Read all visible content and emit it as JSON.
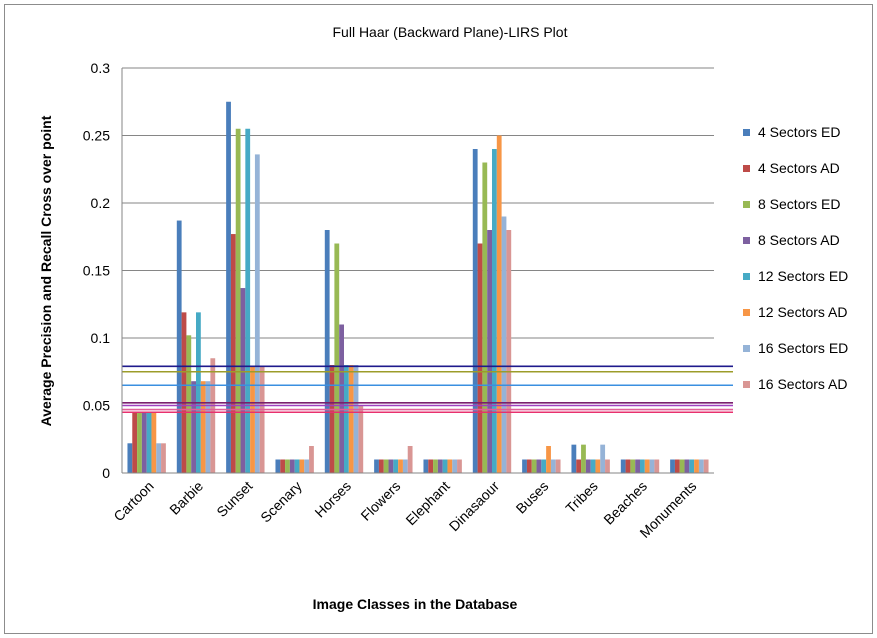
{
  "chart_data": {
    "type": "bar",
    "title": "Full Haar (Backward  Plane)-LIRS Plot",
    "xlabel": "Image Classes  in the Database",
    "ylabel": "Average Precision and Recall Cross over point",
    "ylim": [
      0,
      0.3
    ],
    "yticks": [
      "0",
      "0.05",
      "0.1",
      "0.15",
      "0.2",
      "0.25",
      "0.3"
    ],
    "grid": "horizontal",
    "legend_position": "right",
    "categories": [
      "Cartoon",
      "Barbie",
      "Sunset",
      "Scenary",
      "Horses",
      "Flowers",
      "Elephant",
      "Dinasaour",
      "Buses",
      "Tribes",
      "Beaches",
      "Monuments"
    ],
    "series": [
      {
        "name": "4 Sectors ED",
        "color": "#4a7ebb",
        "values": [
          0.022,
          0.187,
          0.275,
          0.01,
          0.18,
          0.01,
          0.01,
          0.24,
          0.01,
          0.021,
          0.01,
          0.01
        ]
      },
      {
        "name": "4 Sectors AD",
        "color": "#be4b48",
        "values": [
          0.045,
          0.119,
          0.177,
          0.01,
          0.08,
          0.01,
          0.01,
          0.17,
          0.01,
          0.01,
          0.01,
          0.01
        ]
      },
      {
        "name": "8 Sectors ED",
        "color": "#98b954",
        "values": [
          0.045,
          0.102,
          0.255,
          0.01,
          0.17,
          0.01,
          0.01,
          0.23,
          0.01,
          0.021,
          0.01,
          0.01
        ]
      },
      {
        "name": "8 Sectors AD",
        "color": "#7d60a0",
        "values": [
          0.045,
          0.068,
          0.137,
          0.01,
          0.11,
          0.01,
          0.01,
          0.18,
          0.01,
          0.01,
          0.01,
          0.01
        ]
      },
      {
        "name": "12 Sectors ED",
        "color": "#46aac5",
        "values": [
          0.045,
          0.119,
          0.255,
          0.01,
          0.08,
          0.01,
          0.01,
          0.24,
          0.01,
          0.01,
          0.01,
          0.01
        ]
      },
      {
        "name": "12 Sectors AD",
        "color": "#f79646",
        "values": [
          0.045,
          0.068,
          0.079,
          0.01,
          0.08,
          0.01,
          0.01,
          0.25,
          0.02,
          0.01,
          0.01,
          0.01
        ]
      },
      {
        "name": "16 Sectors ED",
        "color": "#95b3d7",
        "values": [
          0.022,
          0.068,
          0.236,
          0.01,
          0.08,
          0.01,
          0.01,
          0.19,
          0.01,
          0.021,
          0.01,
          0.01
        ]
      },
      {
        "name": "16 Sectors AD",
        "color": "#d99694",
        "values": [
          0.022,
          0.085,
          0.079,
          0.02,
          0.05,
          0.02,
          0.01,
          0.18,
          0.01,
          0.01,
          0.01,
          0.01
        ]
      }
    ],
    "reference_lines": [
      {
        "value": 0.079,
        "color": "#1f1a8c"
      },
      {
        "value": 0.075,
        "color": "#9c9c2a"
      },
      {
        "value": 0.065,
        "color": "#3a8fe0"
      },
      {
        "value": 0.052,
        "color": "#7a1f6e"
      },
      {
        "value": 0.05,
        "color": "#a040c0"
      },
      {
        "value": 0.047,
        "color": "#e0609a"
      },
      {
        "value": 0.045,
        "color": "#e8306e"
      }
    ]
  }
}
